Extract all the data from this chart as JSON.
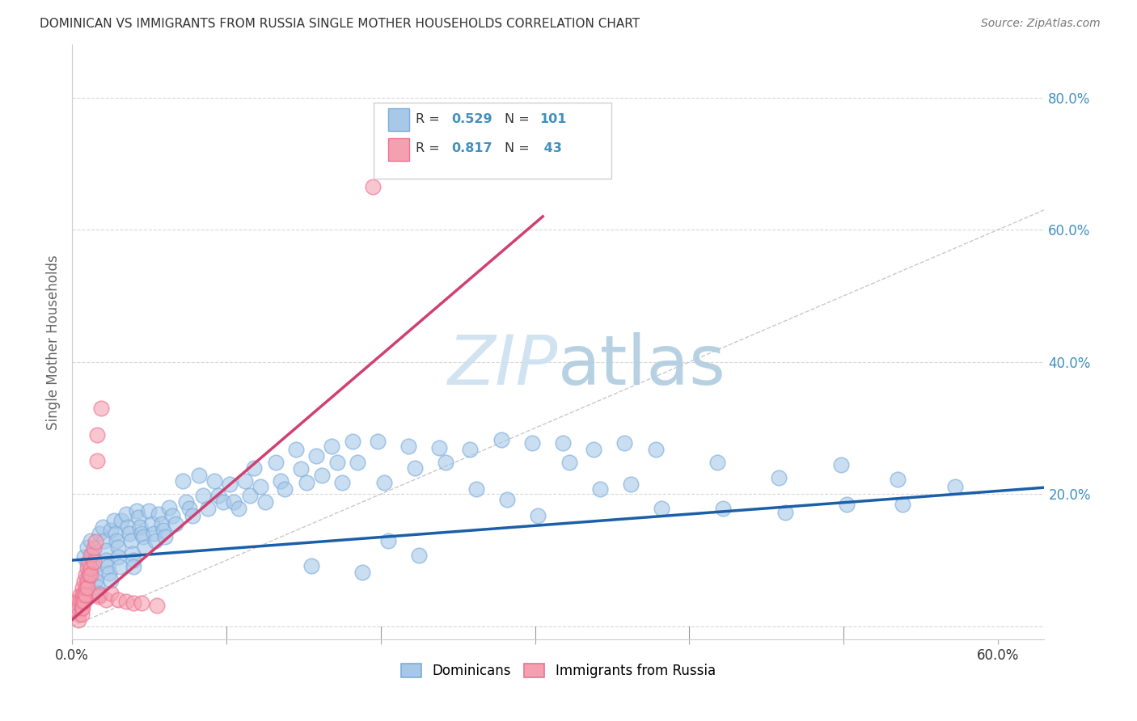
{
  "title": "DOMINICAN VS IMMIGRANTS FROM RUSSIA SINGLE MOTHER HOUSEHOLDS CORRELATION CHART",
  "source": "Source: ZipAtlas.com",
  "ylabel": "Single Mother Households",
  "xlim": [
    0.0,
    0.63
  ],
  "ylim": [
    -0.02,
    0.88
  ],
  "blue_color": "#a8c8e8",
  "pink_color": "#f4a0b0",
  "blue_edge_color": "#7aacdc",
  "pink_edge_color": "#f07090",
  "blue_line_color": "#1a5fa8",
  "pink_line_color": "#d04070",
  "diag_color": "#c0c0c0",
  "grid_color": "#d8d8d8",
  "blue_dots": [
    [
      0.008,
      0.105
    ],
    [
      0.01,
      0.12
    ],
    [
      0.01,
      0.095
    ],
    [
      0.01,
      0.075
    ],
    [
      0.01,
      0.06
    ],
    [
      0.012,
      0.13
    ],
    [
      0.013,
      0.11
    ],
    [
      0.014,
      0.09
    ],
    [
      0.015,
      0.08
    ],
    [
      0.015,
      0.07
    ],
    [
      0.016,
      0.06
    ],
    [
      0.017,
      0.05
    ],
    [
      0.018,
      0.14
    ],
    [
      0.02,
      0.15
    ],
    [
      0.021,
      0.13
    ],
    [
      0.022,
      0.115
    ],
    [
      0.022,
      0.1
    ],
    [
      0.023,
      0.09
    ],
    [
      0.024,
      0.08
    ],
    [
      0.025,
      0.07
    ],
    [
      0.025,
      0.145
    ],
    [
      0.027,
      0.16
    ],
    [
      0.028,
      0.14
    ],
    [
      0.029,
      0.13
    ],
    [
      0.03,
      0.12
    ],
    [
      0.03,
      0.105
    ],
    [
      0.031,
      0.09
    ],
    [
      0.032,
      0.16
    ],
    [
      0.035,
      0.17
    ],
    [
      0.036,
      0.15
    ],
    [
      0.037,
      0.14
    ],
    [
      0.038,
      0.13
    ],
    [
      0.039,
      0.11
    ],
    [
      0.04,
      0.1
    ],
    [
      0.04,
      0.09
    ],
    [
      0.042,
      0.175
    ],
    [
      0.043,
      0.165
    ],
    [
      0.044,
      0.15
    ],
    [
      0.045,
      0.14
    ],
    [
      0.046,
      0.135
    ],
    [
      0.047,
      0.12
    ],
    [
      0.05,
      0.175
    ],
    [
      0.052,
      0.155
    ],
    [
      0.053,
      0.14
    ],
    [
      0.054,
      0.13
    ],
    [
      0.056,
      0.17
    ],
    [
      0.058,
      0.155
    ],
    [
      0.059,
      0.145
    ],
    [
      0.06,
      0.135
    ],
    [
      0.063,
      0.18
    ],
    [
      0.065,
      0.168
    ],
    [
      0.067,
      0.155
    ],
    [
      0.072,
      0.22
    ],
    [
      0.074,
      0.188
    ],
    [
      0.076,
      0.178
    ],
    [
      0.078,
      0.168
    ],
    [
      0.082,
      0.228
    ],
    [
      0.085,
      0.198
    ],
    [
      0.088,
      0.178
    ],
    [
      0.092,
      0.22
    ],
    [
      0.095,
      0.198
    ],
    [
      0.098,
      0.188
    ],
    [
      0.102,
      0.215
    ],
    [
      0.105,
      0.188
    ],
    [
      0.108,
      0.178
    ],
    [
      0.112,
      0.22
    ],
    [
      0.115,
      0.198
    ],
    [
      0.118,
      0.24
    ],
    [
      0.122,
      0.212
    ],
    [
      0.125,
      0.188
    ],
    [
      0.132,
      0.248
    ],
    [
      0.135,
      0.22
    ],
    [
      0.138,
      0.208
    ],
    [
      0.145,
      0.268
    ],
    [
      0.148,
      0.238
    ],
    [
      0.152,
      0.218
    ],
    [
      0.155,
      0.092
    ],
    [
      0.158,
      0.258
    ],
    [
      0.162,
      0.228
    ],
    [
      0.168,
      0.272
    ],
    [
      0.172,
      0.248
    ],
    [
      0.175,
      0.218
    ],
    [
      0.182,
      0.28
    ],
    [
      0.185,
      0.248
    ],
    [
      0.188,
      0.082
    ],
    [
      0.198,
      0.28
    ],
    [
      0.202,
      0.218
    ],
    [
      0.205,
      0.13
    ],
    [
      0.218,
      0.272
    ],
    [
      0.222,
      0.24
    ],
    [
      0.225,
      0.108
    ],
    [
      0.238,
      0.27
    ],
    [
      0.242,
      0.248
    ],
    [
      0.258,
      0.268
    ],
    [
      0.262,
      0.208
    ],
    [
      0.278,
      0.282
    ],
    [
      0.282,
      0.192
    ],
    [
      0.298,
      0.278
    ],
    [
      0.302,
      0.168
    ],
    [
      0.318,
      0.278
    ],
    [
      0.322,
      0.248
    ],
    [
      0.338,
      0.268
    ],
    [
      0.342,
      0.208
    ],
    [
      0.358,
      0.278
    ],
    [
      0.362,
      0.215
    ],
    [
      0.378,
      0.268
    ],
    [
      0.382,
      0.178
    ],
    [
      0.418,
      0.248
    ],
    [
      0.422,
      0.178
    ],
    [
      0.458,
      0.225
    ],
    [
      0.462,
      0.172
    ],
    [
      0.498,
      0.245
    ],
    [
      0.502,
      0.185
    ],
    [
      0.535,
      0.222
    ],
    [
      0.538,
      0.185
    ],
    [
      0.572,
      0.212
    ]
  ],
  "pink_dots": [
    [
      0.003,
      0.038
    ],
    [
      0.004,
      0.028
    ],
    [
      0.004,
      0.018
    ],
    [
      0.004,
      0.01
    ],
    [
      0.005,
      0.048
    ],
    [
      0.005,
      0.038
    ],
    [
      0.006,
      0.028
    ],
    [
      0.006,
      0.018
    ],
    [
      0.007,
      0.058
    ],
    [
      0.007,
      0.048
    ],
    [
      0.007,
      0.038
    ],
    [
      0.007,
      0.028
    ],
    [
      0.008,
      0.068
    ],
    [
      0.008,
      0.048
    ],
    [
      0.008,
      0.038
    ],
    [
      0.009,
      0.078
    ],
    [
      0.009,
      0.058
    ],
    [
      0.009,
      0.048
    ],
    [
      0.01,
      0.088
    ],
    [
      0.01,
      0.068
    ],
    [
      0.01,
      0.058
    ],
    [
      0.011,
      0.098
    ],
    [
      0.011,
      0.078
    ],
    [
      0.012,
      0.108
    ],
    [
      0.012,
      0.088
    ],
    [
      0.012,
      0.078
    ],
    [
      0.014,
      0.118
    ],
    [
      0.014,
      0.098
    ],
    [
      0.015,
      0.128
    ],
    [
      0.016,
      0.29
    ],
    [
      0.016,
      0.25
    ],
    [
      0.017,
      0.045
    ],
    [
      0.018,
      0.048
    ],
    [
      0.019,
      0.33
    ],
    [
      0.022,
      0.04
    ],
    [
      0.025,
      0.05
    ],
    [
      0.03,
      0.04
    ],
    [
      0.035,
      0.038
    ],
    [
      0.04,
      0.035
    ],
    [
      0.045,
      0.035
    ],
    [
      0.055,
      0.032
    ],
    [
      0.195,
      0.665
    ]
  ],
  "blue_trend_x": [
    0.0,
    0.63
  ],
  "blue_trend_y": [
    0.1,
    0.21
  ],
  "pink_trend_x": [
    0.0,
    0.305
  ],
  "pink_trend_y": [
    0.01,
    0.62
  ]
}
